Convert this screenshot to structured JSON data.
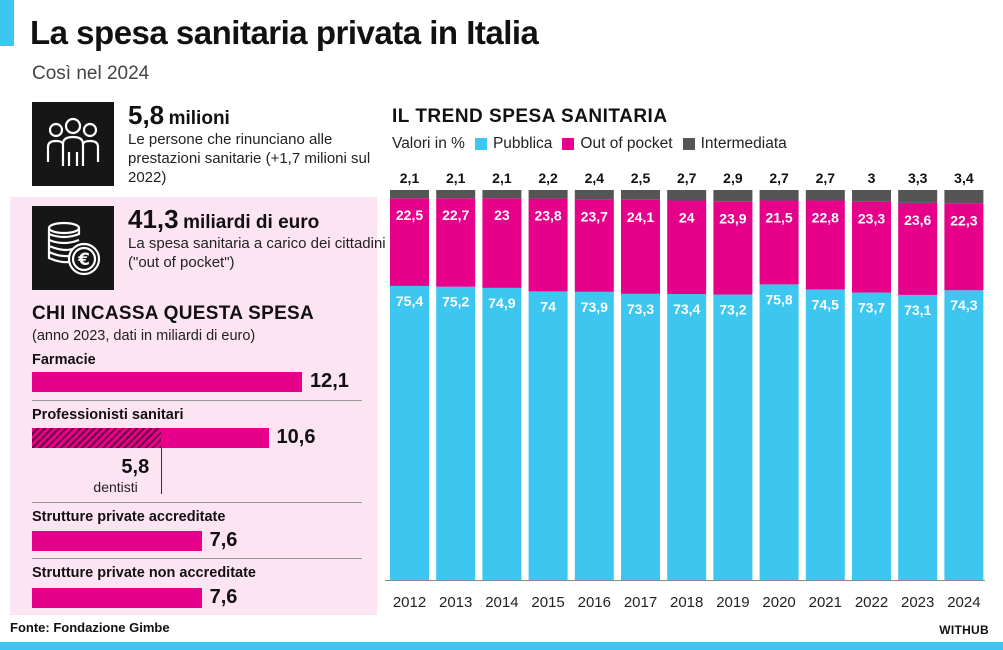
{
  "header": {
    "title": "La spesa sanitaria privata in Italia",
    "subtitle": "Così nel 2024"
  },
  "stat1": {
    "number": "5,8",
    "unit": "milioni",
    "desc": "Le persone che rinunciano alle prestazioni sanitarie (+1,7 milioni sul 2022)",
    "icon": "people-icon"
  },
  "stat2": {
    "number": "41,3",
    "unit": "miliardi di euro",
    "desc": "La spesa sanitaria a carico dei cittadini (\"out of pocket\")",
    "icon": "euro-coins-icon"
  },
  "recipients": {
    "title": "CHI INCASSA QUESTA SPESA",
    "subtitle": "(anno 2023, dati in miliardi di euro)",
    "max": 12.1,
    "items": [
      {
        "label": "Farmacie",
        "value": 12.1,
        "value_label": "12,1"
      },
      {
        "label": "Professionisti sanitari",
        "value": 10.6,
        "value_label": "10,6",
        "sub_value": 5.8,
        "sub_value_label": "5,8",
        "sub_label": "dentisti"
      },
      {
        "label": "Strutture private accreditate",
        "value": 7.6,
        "value_label": "7,6"
      },
      {
        "label": "Strutture private non accreditate",
        "value": 7.6,
        "value_label": "7,6"
      }
    ]
  },
  "colors": {
    "pubblica": "#3cc6f0",
    "out_of_pocket": "#e6008a",
    "intermediata": "#555555",
    "panel": "#fde4f3"
  },
  "chart_data": {
    "type": "bar",
    "stacked": true,
    "title": "IL TREND SPESA SANITARIA",
    "unit_label": "Valori in %",
    "categories": [
      "2012",
      "2013",
      "2014",
      "2015",
      "2016",
      "2017",
      "2018",
      "2019",
      "2020",
      "2021",
      "2022",
      "2023",
      "2024"
    ],
    "series": [
      {
        "name": "Pubblica",
        "values": [
          75.4,
          75.2,
          74.9,
          74,
          73.9,
          73.3,
          73.4,
          73.2,
          75.8,
          74.5,
          73.7,
          73.1,
          74.3
        ],
        "labels": [
          "75,4",
          "75,2",
          "74,9",
          "74",
          "73,9",
          "73,3",
          "73,4",
          "73,2",
          "75,8",
          "74,5",
          "73,7",
          "73,1",
          "74,3"
        ]
      },
      {
        "name": "Out of pocket",
        "values": [
          22.5,
          22.7,
          23,
          23.8,
          23.7,
          24.1,
          24,
          23.9,
          21.5,
          22.8,
          23.3,
          23.6,
          22.3
        ],
        "labels": [
          "22,5",
          "22,7",
          "23",
          "23,8",
          "23,7",
          "24,1",
          "24",
          "23,9",
          "21,5",
          "22,8",
          "23,3",
          "23,6",
          "22,3"
        ]
      },
      {
        "name": "Intermediata",
        "values": [
          2.1,
          2.1,
          2.1,
          2.2,
          2.4,
          2.5,
          2.7,
          2.9,
          2.7,
          2.7,
          3,
          3.3,
          3.4
        ],
        "labels": [
          "2,1",
          "2,1",
          "2,1",
          "2,2",
          "2,4",
          "2,5",
          "2,7",
          "2,9",
          "2,7",
          "2,7",
          "3",
          "3,3",
          "3,4"
        ]
      }
    ],
    "ylim": [
      0,
      100
    ]
  },
  "footer": {
    "source": "Fonte: Fondazione Gimbe",
    "brand": "WITHUB"
  }
}
